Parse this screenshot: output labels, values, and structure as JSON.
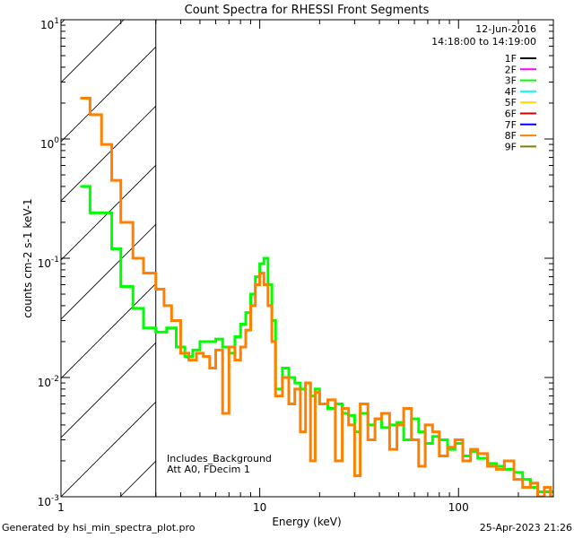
{
  "chart_data": {
    "type": "line",
    "title": "Count Spectra for RHESSI Front Segments",
    "xlabel": "Energy (keV)",
    "ylabel": "counts cm-2 s-1 keV-1",
    "xscale": "log",
    "yscale": "log",
    "xlim": [
      1,
      300
    ],
    "ylim": [
      0.001,
      10
    ],
    "x_tick_labels": [
      "1",
      "10",
      "100"
    ],
    "y_tick_labels": [
      {
        "base": "10",
        "exp": "-3",
        "value": 0.001
      },
      {
        "base": "10",
        "exp": "-2",
        "value": 0.01
      },
      {
        "base": "10",
        "exp": "-1",
        "value": 0.1
      },
      {
        "base": "10",
        "exp": "0",
        "value": 1
      },
      {
        "base": "10",
        "exp": "1",
        "value": 10
      }
    ],
    "hatched_region_x": [
      1,
      3
    ],
    "header": {
      "date": "12-Jun-2016",
      "time_range": "14:18:00 to 14:19:00"
    },
    "annotation": [
      "Includes_Background",
      "Att A0, FDecim 1"
    ],
    "legend": [
      {
        "label": "1F",
        "color": "#000000"
      },
      {
        "label": "2F",
        "color": "#ff00ff"
      },
      {
        "label": "3F",
        "color": "#00ff00"
      },
      {
        "label": "4F",
        "color": "#00ffff"
      },
      {
        "label": "5F",
        "color": "#ffd700"
      },
      {
        "label": "6F",
        "color": "#d00000"
      },
      {
        "label": "7F",
        "color": "#0000ff"
      },
      {
        "label": "8F",
        "color": "#ff7f00"
      },
      {
        "label": "9F",
        "color": "#808000"
      }
    ],
    "series": [
      {
        "name": "3F",
        "color": "#00ff00",
        "points": [
          [
            1.25,
            0.4
          ],
          [
            1.4,
            0.24
          ],
          [
            1.6,
            0.24
          ],
          [
            1.8,
            0.12
          ],
          [
            2.0,
            0.058
          ],
          [
            2.3,
            0.038
          ],
          [
            2.6,
            0.026
          ],
          [
            3.0,
            0.024
          ],
          [
            3.4,
            0.026
          ],
          [
            3.8,
            0.018
          ],
          [
            4.2,
            0.015
          ],
          [
            4.6,
            0.017
          ],
          [
            5.0,
            0.02
          ],
          [
            5.5,
            0.02
          ],
          [
            6.0,
            0.021
          ],
          [
            6.5,
            0.018
          ],
          [
            7.0,
            0.016
          ],
          [
            7.5,
            0.022
          ],
          [
            8.0,
            0.028
          ],
          [
            8.5,
            0.035
          ],
          [
            9.0,
            0.05
          ],
          [
            9.5,
            0.07
          ],
          [
            10.0,
            0.09
          ],
          [
            10.5,
            0.1
          ],
          [
            11.0,
            0.06
          ],
          [
            11.5,
            0.03
          ],
          [
            12.0,
            0.008
          ],
          [
            13,
            0.012
          ],
          [
            14,
            0.01
          ],
          [
            15,
            0.009
          ],
          [
            16,
            0.008
          ],
          [
            17,
            0.009
          ],
          [
            18,
            0.007
          ],
          [
            19,
            0.008
          ],
          [
            20,
            0.006
          ],
          [
            22,
            0.0055
          ],
          [
            24,
            0.006
          ],
          [
            26,
            0.005
          ],
          [
            28,
            0.0048
          ],
          [
            30,
            0.0035
          ],
          [
            32,
            0.005
          ],
          [
            35,
            0.004
          ],
          [
            38,
            0.0045
          ],
          [
            41,
            0.0038
          ],
          [
            45,
            0.004
          ],
          [
            49,
            0.0042
          ],
          [
            53,
            0.003
          ],
          [
            58,
            0.0045
          ],
          [
            63,
            0.0035
          ],
          [
            68,
            0.0028
          ],
          [
            74,
            0.0032
          ],
          [
            80,
            0.003
          ],
          [
            88,
            0.0025
          ],
          [
            96,
            0.0028
          ],
          [
            105,
            0.0022
          ],
          [
            115,
            0.0024
          ],
          [
            125,
            0.0021
          ],
          [
            140,
            0.0019
          ],
          [
            155,
            0.0018
          ],
          [
            170,
            0.0017
          ],
          [
            190,
            0.0016
          ],
          [
            210,
            0.0014
          ],
          [
            230,
            0.0012
          ],
          [
            250,
            0.0011
          ],
          [
            270,
            0.0011
          ],
          [
            290,
            0.0011
          ]
        ]
      },
      {
        "name": "8F",
        "color": "#ff7f00",
        "points": [
          [
            1.25,
            2.2
          ],
          [
            1.4,
            1.6
          ],
          [
            1.6,
            0.9
          ],
          [
            1.8,
            0.45
          ],
          [
            2.0,
            0.2
          ],
          [
            2.3,
            0.1
          ],
          [
            2.6,
            0.075
          ],
          [
            3.0,
            0.055
          ],
          [
            3.3,
            0.04
          ],
          [
            3.6,
            0.03
          ],
          [
            4.0,
            0.016
          ],
          [
            4.4,
            0.014
          ],
          [
            4.8,
            0.016
          ],
          [
            5.2,
            0.015
          ],
          [
            5.6,
            0.012
          ],
          [
            6.0,
            0.017
          ],
          [
            6.5,
            0.005
          ],
          [
            7.0,
            0.018
          ],
          [
            7.5,
            0.014
          ],
          [
            8.0,
            0.018
          ],
          [
            8.5,
            0.025
          ],
          [
            9.0,
            0.04
          ],
          [
            9.5,
            0.06
          ],
          [
            10.0,
            0.075
          ],
          [
            10.5,
            0.06
          ],
          [
            11.0,
            0.04
          ],
          [
            11.5,
            0.02
          ],
          [
            12.0,
            0.007
          ],
          [
            13,
            0.01
          ],
          [
            14,
            0.006
          ],
          [
            15,
            0.008
          ],
          [
            16,
            0.0035
          ],
          [
            17,
            0.009
          ],
          [
            18,
            0.002
          ],
          [
            19,
            0.0075
          ],
          [
            20,
            0.006
          ],
          [
            22,
            0.0065
          ],
          [
            24,
            0.002
          ],
          [
            26,
            0.0055
          ],
          [
            28,
            0.004
          ],
          [
            30,
            0.0015
          ],
          [
            32,
            0.006
          ],
          [
            35,
            0.003
          ],
          [
            38,
            0.0045
          ],
          [
            41,
            0.005
          ],
          [
            45,
            0.0025
          ],
          [
            49,
            0.004
          ],
          [
            53,
            0.0055
          ],
          [
            58,
            0.003
          ],
          [
            63,
            0.0018
          ],
          [
            68,
            0.004
          ],
          [
            74,
            0.0035
          ],
          [
            80,
            0.0022
          ],
          [
            88,
            0.0026
          ],
          [
            96,
            0.003
          ],
          [
            105,
            0.002
          ],
          [
            115,
            0.0025
          ],
          [
            125,
            0.0023
          ],
          [
            140,
            0.0018
          ],
          [
            155,
            0.0017
          ],
          [
            170,
            0.002
          ],
          [
            190,
            0.0014
          ],
          [
            210,
            0.0012
          ],
          [
            230,
            0.0013
          ],
          [
            250,
            0.001
          ],
          [
            270,
            0.0012
          ],
          [
            290,
            0.001
          ]
        ]
      }
    ]
  },
  "footer": {
    "left": "Generated by hsi_min_spectra_plot.pro",
    "right": "25-Apr-2023 21:26"
  }
}
